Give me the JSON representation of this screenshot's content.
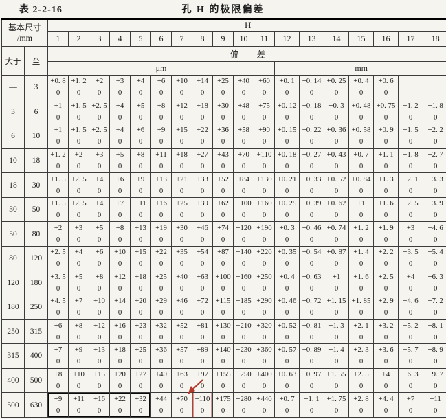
{
  "page": {
    "table_label": "表 2-2-16",
    "title": "孔 H 的极限偏差"
  },
  "header": {
    "basic_size": "基本尺寸",
    "basic_size_unit": "/mm",
    "series": "H",
    "grades": [
      "1",
      "2",
      "3",
      "4",
      "5",
      "6",
      "7",
      "8",
      "9",
      "10",
      "11",
      "12",
      "13",
      "14",
      "15",
      "16",
      "17",
      "18"
    ],
    "over_label": "大于",
    "to_label": "至",
    "deviation_label": "偏        差",
    "unit_um": "μm",
    "unit_mm": "mm",
    "um_col_count": 11,
    "mm_col_count": 7
  },
  "rows": [
    {
      "over": "—",
      "to": "3",
      "upper": [
        "+0. 8",
        "+1. 2",
        "+2",
        "+3",
        "+4",
        "+6",
        "+10",
        "+14",
        "+25",
        "+40",
        "+60",
        "+0. 1",
        "+0. 14",
        "+0. 25",
        "+0. 4",
        "+0. 6",
        "",
        ""
      ],
      "lower": [
        "0",
        "0",
        "0",
        "0",
        "0",
        "0",
        "0",
        "0",
        "0",
        "0",
        "0",
        "0",
        "0",
        "0",
        "0",
        "0",
        "",
        ""
      ]
    },
    {
      "over": "3",
      "to": "6",
      "upper": [
        "+1",
        "+1. 5",
        "+2. 5",
        "+4",
        "+5",
        "+8",
        "+12",
        "+18",
        "+30",
        "+48",
        "+75",
        "+0. 12",
        "+0. 18",
        "+0. 3",
        "+0. 48",
        "+0. 75",
        "+1. 2",
        "+1. 8"
      ],
      "lower": [
        "0",
        "0",
        "0",
        "0",
        "0",
        "0",
        "0",
        "0",
        "0",
        "0",
        "0",
        "0",
        "0",
        "0",
        "0",
        "0",
        "0",
        "0"
      ]
    },
    {
      "over": "6",
      "to": "10",
      "upper": [
        "+1",
        "+1. 5",
        "+2. 5",
        "+4",
        "+6",
        "+9",
        "+15",
        "+22",
        "+36",
        "+58",
        "+90",
        "+0. 15",
        "+0. 22",
        "+0. 36",
        "+0. 58",
        "+0. 9",
        "+1. 5",
        "+2. 2"
      ],
      "lower": [
        "0",
        "0",
        "0",
        "0",
        "0",
        "0",
        "0",
        "0",
        "0",
        "0",
        "0",
        "0",
        "0",
        "0",
        "0",
        "0",
        "0",
        "0"
      ]
    },
    {
      "over": "10",
      "to": "18",
      "upper": [
        "+1. 2",
        "+2",
        "+3",
        "+5",
        "+8",
        "+11",
        "+18",
        "+27",
        "+43",
        "+70",
        "+110",
        "+0. 18",
        "+0. 27",
        "+0. 43",
        "+0. 7",
        "+1. 1",
        "+1. 8",
        "+2. 7"
      ],
      "lower": [
        "0",
        "0",
        "0",
        "0",
        "0",
        "0",
        "0",
        "0",
        "0",
        "0",
        "0",
        "0",
        "0",
        "0",
        "0",
        "0",
        "0",
        "0"
      ]
    },
    {
      "over": "18",
      "to": "30",
      "upper": [
        "+1. 5",
        "+2. 5",
        "+4",
        "+6",
        "+9",
        "+13",
        "+21",
        "+33",
        "+52",
        "+84",
        "+130",
        "+0. 21",
        "+0. 33",
        "+0. 52",
        "+0. 84",
        "+1. 3",
        "+2. 1",
        "+3. 3"
      ],
      "lower": [
        "0",
        "0",
        "0",
        "0",
        "0",
        "0",
        "0",
        "0",
        "0",
        "0",
        "0",
        "0",
        "0",
        "0",
        "0",
        "0",
        "0",
        "0"
      ]
    },
    {
      "over": "30",
      "to": "50",
      "upper": [
        "+1. 5",
        "+2. 5",
        "+4",
        "+7",
        "+11",
        "+16",
        "+25",
        "+39",
        "+62",
        "+100",
        "+160",
        "+0. 25",
        "+0. 39",
        "+0. 62",
        "+1",
        "+1. 6",
        "+2. 5",
        "+3. 9"
      ],
      "lower": [
        "0",
        "0",
        "0",
        "0",
        "0",
        "0",
        "0",
        "0",
        "0",
        "0",
        "0",
        "0",
        "0",
        "0",
        "0",
        "0",
        "0",
        "0"
      ]
    },
    {
      "over": "50",
      "to": "80",
      "upper": [
        "+2",
        "+3",
        "+5",
        "+8",
        "+13",
        "+19",
        "+30",
        "+46",
        "+74",
        "+120",
        "+190",
        "+0. 3",
        "+0. 46",
        "+0. 74",
        "+1. 2",
        "+1. 9",
        "+3",
        "+4. 6"
      ],
      "lower": [
        "0",
        "0",
        "0",
        "0",
        "0",
        "0",
        "0",
        "0",
        "0",
        "0",
        "0",
        "0",
        "0",
        "0",
        "0",
        "0",
        "0",
        "0"
      ]
    },
    {
      "over": "80",
      "to": "120",
      "upper": [
        "+2. 5",
        "+4",
        "+6",
        "+10",
        "+15",
        "+22",
        "+35",
        "+54",
        "+87",
        "+140",
        "+220",
        "+0. 35",
        "+0. 54",
        "+0. 87",
        "+1. 4",
        "+2. 2",
        "+3. 5",
        "+5. 4"
      ],
      "lower": [
        "0",
        "0",
        "0",
        "0",
        "0",
        "0",
        "0",
        "0",
        "0",
        "0",
        "0",
        "0",
        "0",
        "0",
        "0",
        "0",
        "0",
        "0"
      ]
    },
    {
      "over": "120",
      "to": "180",
      "upper": [
        "+3. 5",
        "+5",
        "+8",
        "+12",
        "+18",
        "+25",
        "+40",
        "+63",
        "+100",
        "+160",
        "+250",
        "+0. 4",
        "+0. 63",
        "+1",
        "+1. 6",
        "+2. 5",
        "+4",
        "+6. 3"
      ],
      "lower": [
        "0",
        "0",
        "0",
        "0",
        "0",
        "0",
        "0",
        "0",
        "0",
        "0",
        "0",
        "0",
        "0",
        "0",
        "0",
        "0",
        "0",
        "0"
      ]
    },
    {
      "over": "180",
      "to": "250",
      "upper": [
        "+4. 5",
        "+7",
        "+10",
        "+14",
        "+20",
        "+29",
        "+46",
        "+72",
        "+115",
        "+185",
        "+290",
        "+0. 46",
        "+0. 72",
        "+1. 15",
        "+1. 85",
        "+2. 9",
        "+4. 6",
        "+7. 2"
      ],
      "lower": [
        "0",
        "0",
        "0",
        "0",
        "0",
        "0",
        "0",
        "0",
        "0",
        "0",
        "0",
        "0",
        "0",
        "0",
        "0",
        "0",
        "0",
        "0"
      ]
    },
    {
      "over": "250",
      "to": "315",
      "upper": [
        "+6",
        "+8",
        "+12",
        "+16",
        "+23",
        "+32",
        "+52",
        "+81",
        "+130",
        "+210",
        "+320",
        "+0. 52",
        "+0. 81",
        "+1. 3",
        "+2. 1",
        "+3. 2",
        "+5. 2",
        "+8. 1"
      ],
      "lower": [
        "0",
        "0",
        "0",
        "0",
        "0",
        "0",
        "0",
        "0",
        "0",
        "0",
        "0",
        "0",
        "0",
        "0",
        "0",
        "0",
        "0",
        "0"
      ]
    },
    {
      "over": "315",
      "to": "400",
      "upper": [
        "+7",
        "+9",
        "+13",
        "+18",
        "+25",
        "+36",
        "+57",
        "+89",
        "+140",
        "+230",
        "+360",
        "+0. 57",
        "+0. 89",
        "+1. 4",
        "+2. 3",
        "+3. 6",
        "+5. 7",
        "+8. 9"
      ],
      "lower": [
        "0",
        "0",
        "0",
        "0",
        "0",
        "0",
        "0",
        "0",
        "0",
        "0",
        "0",
        "0",
        "0",
        "0",
        "0",
        "0",
        "0",
        "0"
      ]
    },
    {
      "over": "400",
      "to": "500",
      "upper": [
        "+8",
        "+10",
        "+15",
        "+20",
        "+27",
        "+40",
        "+63",
        "+97",
        "+155",
        "+250",
        "+400",
        "+0. 63",
        "+0. 97",
        "+1. 55",
        "+2. 5",
        "+4",
        "+6. 3",
        "+9. 7"
      ],
      "lower": [
        "0",
        "0",
        "0",
        "0",
        "0",
        "0",
        "0",
        "0",
        "0",
        "0",
        "0",
        "0",
        "0",
        "0",
        "0",
        "0",
        "0",
        "0"
      ]
    },
    {
      "over": "500",
      "to": "630",
      "upper": [
        "+9",
        "+11",
        "+16",
        "+22",
        "+32",
        "+44",
        "+70",
        "+110",
        "+175",
        "+280",
        "+440",
        "+0. 7",
        "+1. 1",
        "+1. 75",
        "+2. 8",
        "+4. 4",
        "+7",
        "+11"
      ],
      "lower": [
        "0",
        "0",
        "0",
        "0",
        "0",
        "0",
        "0",
        "0",
        "0",
        "0",
        "0",
        "0",
        "0",
        "0",
        "0",
        "0",
        "0",
        "0"
      ]
    }
  ],
  "annotations": {
    "thick_box": {
      "row_index": 13,
      "col_start": 0,
      "col_end": 4
    },
    "red_marked_cell": {
      "row_index": 13,
      "col_index": 7
    },
    "red_color": "#b2392c"
  }
}
